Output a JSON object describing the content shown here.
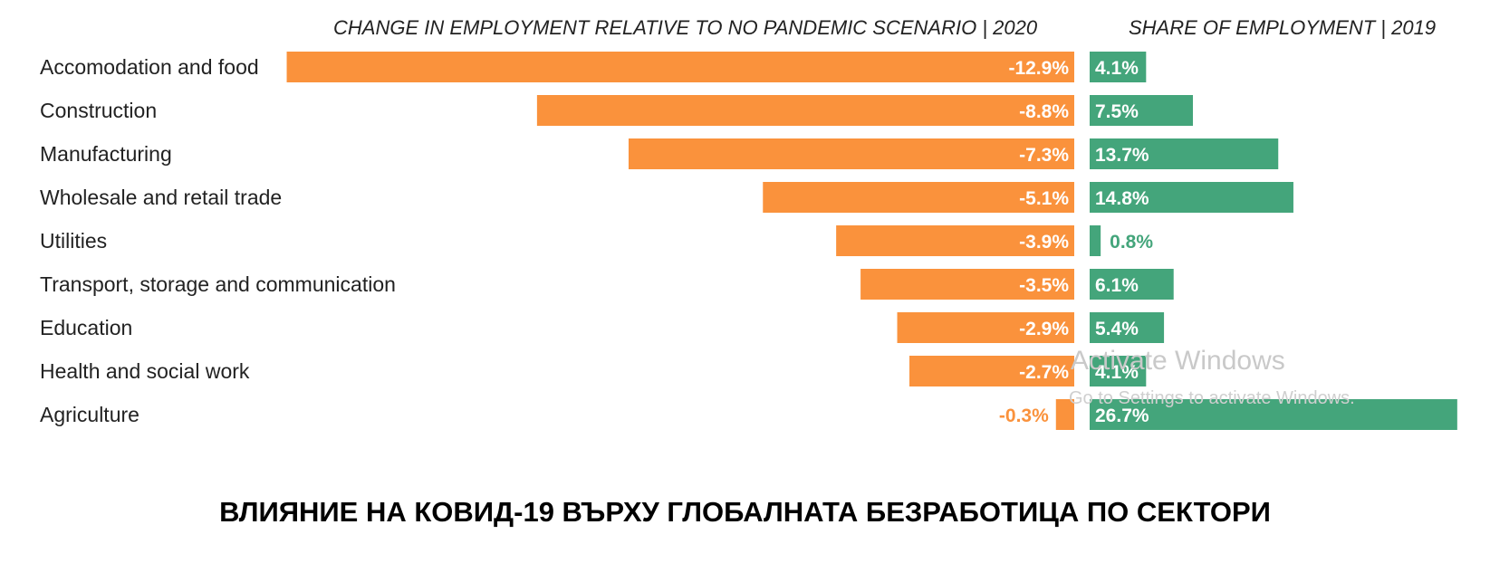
{
  "chart_data": {
    "type": "bar",
    "header_left": "CHANGE IN EMPLOYMENT RELATIVE TO NO PANDEMIC SCENARIO | 2020",
    "header_right": "SHARE OF EMPLOYMENT | 2019",
    "categories": [
      "Accomodation and food",
      "Construction",
      "Manufacturing",
      "Wholesale and retail trade",
      "Utilities",
      "Transport, storage and communication",
      "Education",
      "Health and social work",
      "Agriculture"
    ],
    "series": [
      {
        "values": [
          -12.9,
          -8.8,
          -7.3,
          -5.1,
          -3.9,
          -3.5,
          -2.9,
          -2.7,
          -0.3
        ],
        "labels": [
          "-12.9%",
          "-8.8%",
          "-7.3%",
          "-5.1%",
          "-3.9%",
          "-3.5%",
          "-2.9%",
          "-2.7%",
          "-0.3%"
        ],
        "color": "#fa923c"
      },
      {
        "values": [
          4.1,
          7.5,
          13.7,
          14.8,
          0.8,
          6.1,
          5.4,
          4.1,
          26.7
        ],
        "labels": [
          "4.1%",
          "7.5%",
          "13.7%",
          "14.8%",
          "0.8%",
          "6.1%",
          "5.4%",
          "4.1%",
          "26.7%"
        ],
        "color": "#44a57b"
      }
    ]
  },
  "watermark": {
    "line1": "Activate Windows",
    "line2": "Go to Settings to activate Windows."
  },
  "caption": "ВЛИЯНИЕ НА КОВИД-19 ВЪРХУ ГЛОБАЛНАТА БЕЗРАБОТИЦА ПО СЕКТОРИ"
}
